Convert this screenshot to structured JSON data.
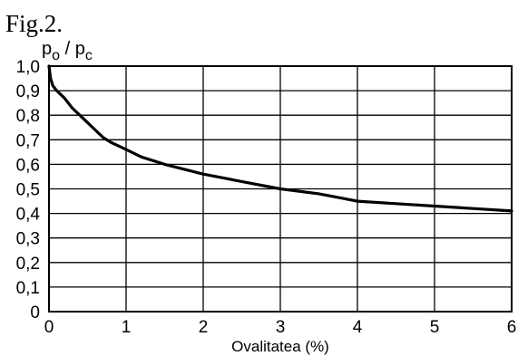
{
  "figure_label": "Fig.2.",
  "chart_data": {
    "type": "line",
    "ylabel": {
      "p": "p",
      "sub_o": "o",
      "slash": " / ",
      "sub_c": "c"
    },
    "xlabel": "Ovalitatea (%)",
    "xlim": [
      0,
      6
    ],
    "ylim": [
      0,
      1.0
    ],
    "x_ticks": [
      0,
      1,
      2,
      3,
      4,
      5,
      6
    ],
    "x_tick_labels": [
      "0",
      "1",
      "2",
      "3",
      "4",
      "5",
      "6"
    ],
    "y_ticks": [
      0,
      0.1,
      0.2,
      0.3,
      0.4,
      0.5,
      0.6,
      0.7,
      0.8,
      0.9,
      1.0
    ],
    "y_tick_labels": [
      "0",
      "0,1",
      "0,2",
      "0,3",
      "0,4",
      "0,5",
      "0,6",
      "0,7",
      "0,8",
      "0,9",
      "1,0"
    ],
    "grid": true,
    "series": [
      {
        "x": [
          0.0,
          0.02,
          0.05,
          0.1,
          0.2,
          0.3,
          0.4,
          0.5,
          0.6,
          0.7,
          0.8,
          1.0,
          1.2,
          1.5,
          2.0,
          2.5,
          3.0,
          3.5,
          4.0,
          4.5,
          5.0,
          5.5,
          6.0
        ],
        "y": [
          1.0,
          0.95,
          0.92,
          0.9,
          0.87,
          0.83,
          0.8,
          0.77,
          0.74,
          0.71,
          0.69,
          0.66,
          0.63,
          0.6,
          0.56,
          0.53,
          0.5,
          0.48,
          0.45,
          0.44,
          0.43,
          0.42,
          0.41
        ]
      }
    ]
  }
}
